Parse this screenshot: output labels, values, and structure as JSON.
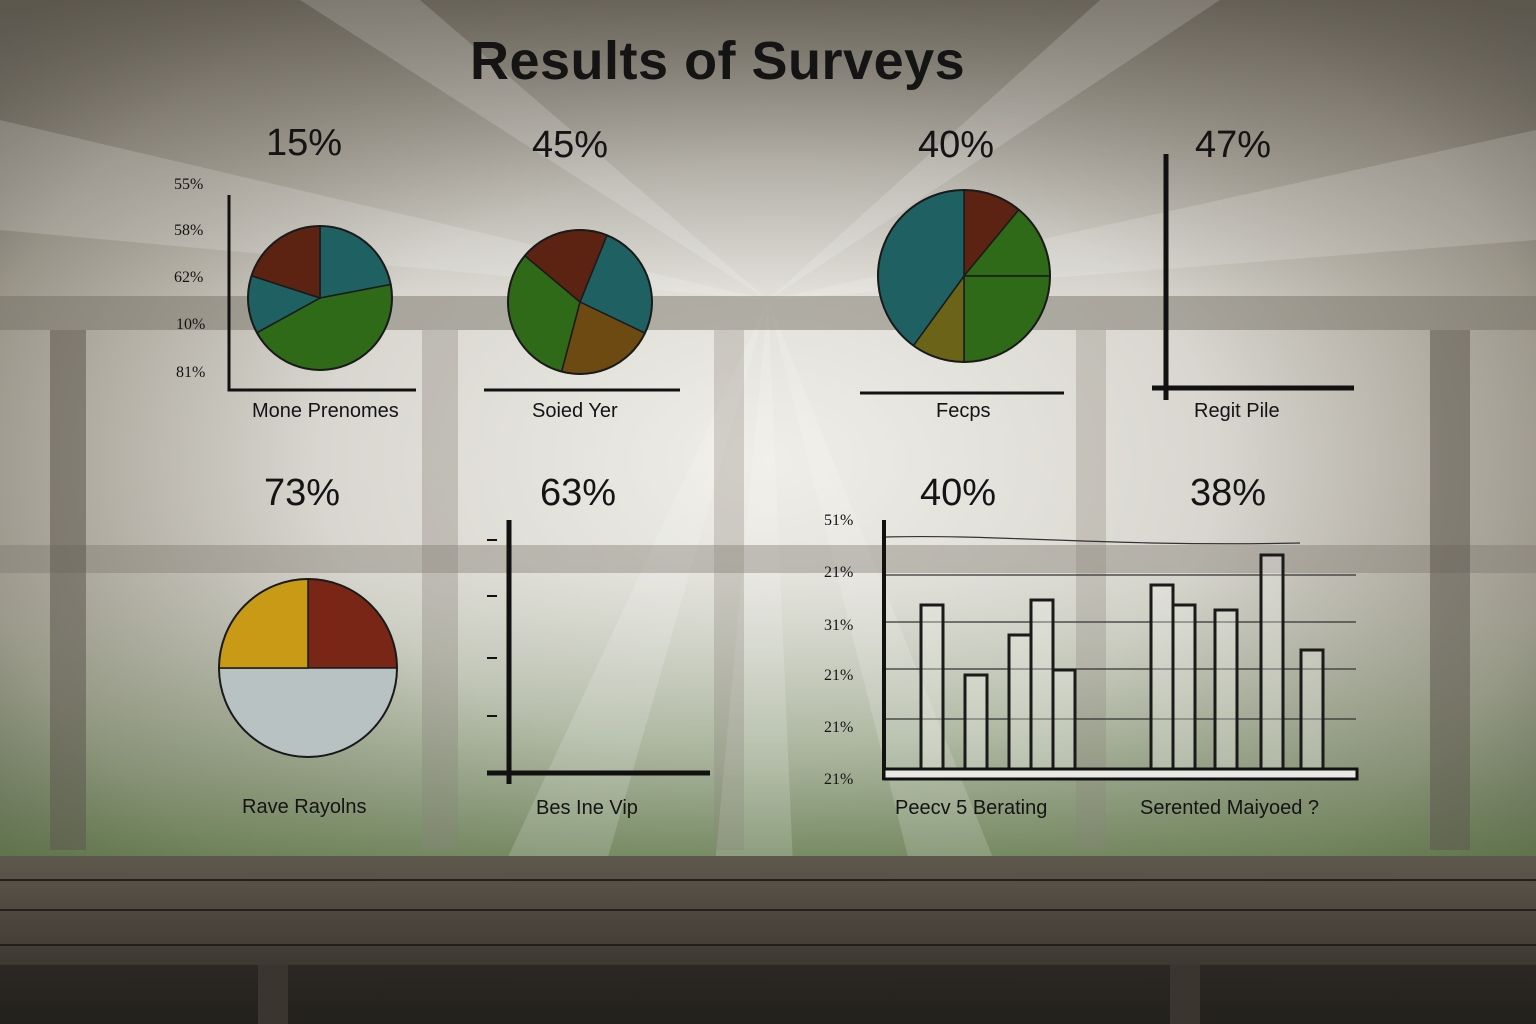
{
  "title": "Results of Surveys",
  "colors": {
    "teal": "#1f6163",
    "green": "#2f6a18",
    "maroon": "#5c2212",
    "brown": "#6e4a13",
    "olive": "#6b6418",
    "yellow": "#c89a16",
    "red": "#7a2616",
    "gray": "#b8c2c2"
  },
  "chart_data": [
    {
      "type": "pie",
      "headline": "15%",
      "caption": "Mone Prenomes",
      "tick_labels": [
        "55%",
        "58%",
        "62%",
        "10%",
        "81%"
      ],
      "slices": [
        {
          "value": 22,
          "color": "teal"
        },
        {
          "value": 45,
          "color": "green"
        },
        {
          "value": 13,
          "color": "teal"
        },
        {
          "value": 20,
          "color": "maroon"
        }
      ]
    },
    {
      "type": "pie",
      "headline": "45%",
      "caption": "Soied Yer",
      "slices": [
        {
          "value": 26,
          "color": "teal"
        },
        {
          "value": 22,
          "color": "brown"
        },
        {
          "value": 32,
          "color": "green"
        },
        {
          "value": 20,
          "color": "maroon"
        }
      ]
    },
    {
      "type": "pie",
      "headline": "40%",
      "caption": "Fecps",
      "slices": [
        {
          "value": 11,
          "color": "maroon"
        },
        {
          "value": 14,
          "color": "green"
        },
        {
          "value": 25,
          "color": "green"
        },
        {
          "value": 10,
          "color": "olive"
        },
        {
          "value": 40,
          "color": "teal"
        }
      ]
    },
    {
      "type": "bar",
      "headline": "47%",
      "caption": "Regit Pile",
      "values": []
    },
    {
      "type": "pie",
      "headline": "73%",
      "caption": "Rave Rayolns",
      "slices": [
        {
          "value": 25,
          "color": "red"
        },
        {
          "value": 50,
          "color": "gray"
        },
        {
          "value": 25,
          "color": "yellow"
        }
      ]
    },
    {
      "type": "bar",
      "headline": "63%",
      "caption": "Bes Ine Vip",
      "values": []
    },
    {
      "type": "bar",
      "headline": "40%",
      "caption": "Peecv 5 Berating",
      "headline2": "38%",
      "caption2": "Serented Maiyoed ?",
      "tick_labels": [
        "51%",
        "21%",
        "31%",
        "21%",
        "21%",
        "21%"
      ],
      "values": [
        33,
        19,
        27,
        34,
        20,
        37,
        33,
        32,
        43,
        24
      ],
      "ylim": [
        0,
        50
      ],
      "grid": true
    }
  ]
}
